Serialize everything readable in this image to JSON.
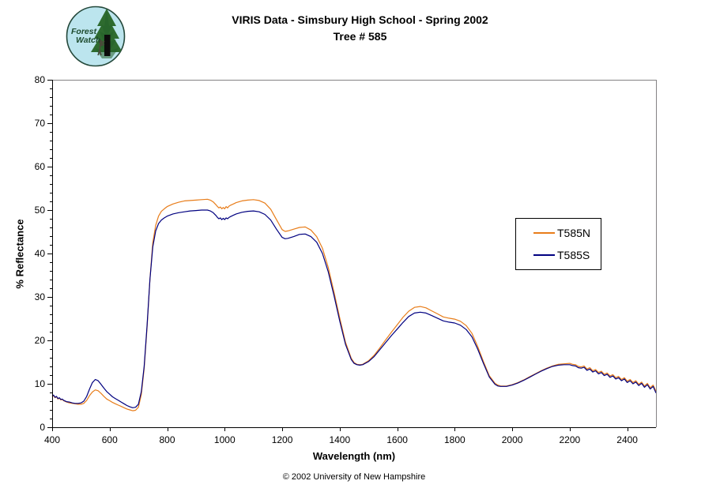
{
  "logo": {
    "line1": "Forest",
    "line2": "Watch"
  },
  "title": {
    "line1": "VIRIS Data - Simsbury High School - Spring 2002",
    "line2": "Tree # 585"
  },
  "footer": "© 2002 University of New Hampshire",
  "chart_data": {
    "type": "line",
    "title": "VIRIS Data - Simsbury High School - Spring 2002 / Tree # 585",
    "xlabel": "Wavelength (nm)",
    "ylabel": "% Reflectance",
    "xlim": [
      400,
      2500
    ],
    "ylim": [
      0,
      80
    ],
    "x_ticks": [
      400,
      600,
      800,
      1000,
      1200,
      1400,
      1600,
      1800,
      2000,
      2200,
      2400
    ],
    "y_ticks": [
      0,
      10,
      20,
      30,
      40,
      50,
      60,
      70,
      80
    ],
    "y_minor_step": 2,
    "grid": false,
    "legend_position": "right-center",
    "axis_color": "#000000",
    "border_color": "#848284",
    "series": [
      {
        "name": "T585N",
        "color": "#e87d1a",
        "points": [
          [
            400,
            7.0
          ],
          [
            405,
            7.3
          ],
          [
            410,
            6.8
          ],
          [
            415,
            7.0
          ],
          [
            420,
            6.5
          ],
          [
            425,
            6.7
          ],
          [
            430,
            6.3
          ],
          [
            435,
            6.4
          ],
          [
            440,
            6.1
          ],
          [
            450,
            5.8
          ],
          [
            460,
            5.6
          ],
          [
            470,
            5.5
          ],
          [
            480,
            5.4
          ],
          [
            490,
            5.3
          ],
          [
            500,
            5.3
          ],
          [
            510,
            5.5
          ],
          [
            520,
            6.2
          ],
          [
            530,
            7.3
          ],
          [
            540,
            8.1
          ],
          [
            550,
            8.6
          ],
          [
            560,
            8.4
          ],
          [
            570,
            7.8
          ],
          [
            580,
            7.1
          ],
          [
            590,
            6.5
          ],
          [
            600,
            6.1
          ],
          [
            610,
            5.7
          ],
          [
            620,
            5.4
          ],
          [
            630,
            5.1
          ],
          [
            640,
            4.8
          ],
          [
            650,
            4.5
          ],
          [
            660,
            4.2
          ],
          [
            670,
            4.0
          ],
          [
            680,
            3.8
          ],
          [
            690,
            3.9
          ],
          [
            700,
            4.6
          ],
          [
            710,
            7.5
          ],
          [
            720,
            13.5
          ],
          [
            730,
            23.0
          ],
          [
            740,
            34.0
          ],
          [
            750,
            42.5
          ],
          [
            760,
            46.5
          ],
          [
            770,
            48.6
          ],
          [
            780,
            49.7
          ],
          [
            790,
            50.3
          ],
          [
            800,
            50.8
          ],
          [
            820,
            51.4
          ],
          [
            840,
            51.8
          ],
          [
            860,
            52.1
          ],
          [
            880,
            52.2
          ],
          [
            900,
            52.3
          ],
          [
            920,
            52.4
          ],
          [
            940,
            52.5
          ],
          [
            950,
            52.3
          ],
          [
            960,
            51.9
          ],
          [
            970,
            51.2
          ],
          [
            975,
            50.8
          ],
          [
            980,
            50.5
          ],
          [
            985,
            50.7
          ],
          [
            990,
            50.3
          ],
          [
            995,
            50.6
          ],
          [
            1000,
            50.3
          ],
          [
            1005,
            50.8
          ],
          [
            1010,
            50.5
          ],
          [
            1015,
            50.9
          ],
          [
            1020,
            51.1
          ],
          [
            1030,
            51.4
          ],
          [
            1040,
            51.7
          ],
          [
            1060,
            52.1
          ],
          [
            1080,
            52.3
          ],
          [
            1100,
            52.4
          ],
          [
            1120,
            52.2
          ],
          [
            1140,
            51.6
          ],
          [
            1160,
            50.2
          ],
          [
            1180,
            47.8
          ],
          [
            1200,
            45.5
          ],
          [
            1210,
            45.1
          ],
          [
            1220,
            45.2
          ],
          [
            1240,
            45.6
          ],
          [
            1260,
            46.0
          ],
          [
            1280,
            46.1
          ],
          [
            1300,
            45.4
          ],
          [
            1320,
            43.9
          ],
          [
            1340,
            41.2
          ],
          [
            1360,
            36.8
          ],
          [
            1380,
            31.2
          ],
          [
            1400,
            25.2
          ],
          [
            1420,
            19.6
          ],
          [
            1440,
            15.9
          ],
          [
            1450,
            14.9
          ],
          [
            1460,
            14.5
          ],
          [
            1470,
            14.4
          ],
          [
            1480,
            14.5
          ],
          [
            1500,
            15.3
          ],
          [
            1520,
            16.6
          ],
          [
            1540,
            18.3
          ],
          [
            1560,
            20.1
          ],
          [
            1580,
            21.9
          ],
          [
            1600,
            23.6
          ],
          [
            1620,
            25.3
          ],
          [
            1640,
            26.7
          ],
          [
            1660,
            27.6
          ],
          [
            1680,
            27.8
          ],
          [
            1700,
            27.5
          ],
          [
            1720,
            26.8
          ],
          [
            1740,
            26.1
          ],
          [
            1760,
            25.4
          ],
          [
            1780,
            25.1
          ],
          [
            1800,
            24.9
          ],
          [
            1820,
            24.4
          ],
          [
            1840,
            23.4
          ],
          [
            1860,
            21.6
          ],
          [
            1880,
            18.6
          ],
          [
            1900,
            15.1
          ],
          [
            1920,
            11.9
          ],
          [
            1940,
            10.1
          ],
          [
            1950,
            9.7
          ],
          [
            1960,
            9.5
          ],
          [
            1980,
            9.5
          ],
          [
            2000,
            9.8
          ],
          [
            2020,
            10.3
          ],
          [
            2040,
            10.9
          ],
          [
            2060,
            11.6
          ],
          [
            2080,
            12.3
          ],
          [
            2100,
            13.0
          ],
          [
            2120,
            13.6
          ],
          [
            2140,
            14.1
          ],
          [
            2160,
            14.5
          ],
          [
            2180,
            14.6
          ],
          [
            2200,
            14.7
          ],
          [
            2210,
            14.5
          ],
          [
            2220,
            14.4
          ],
          [
            2230,
            14.0
          ],
          [
            2240,
            13.9
          ],
          [
            2250,
            14.1
          ],
          [
            2260,
            13.4
          ],
          [
            2270,
            13.7
          ],
          [
            2280,
            13.0
          ],
          [
            2290,
            13.3
          ],
          [
            2300,
            12.6
          ],
          [
            2310,
            12.9
          ],
          [
            2320,
            12.2
          ],
          [
            2330,
            12.5
          ],
          [
            2340,
            11.8
          ],
          [
            2350,
            12.1
          ],
          [
            2360,
            11.4
          ],
          [
            2370,
            11.7
          ],
          [
            2380,
            11.0
          ],
          [
            2390,
            11.4
          ],
          [
            2400,
            10.6
          ],
          [
            2410,
            11.0
          ],
          [
            2420,
            10.3
          ],
          [
            2430,
            10.7
          ],
          [
            2440,
            9.9
          ],
          [
            2450,
            10.4
          ],
          [
            2460,
            9.5
          ],
          [
            2470,
            10.1
          ],
          [
            2480,
            9.1
          ],
          [
            2490,
            9.7
          ],
          [
            2500,
            8.3
          ]
        ]
      },
      {
        "name": "T585S",
        "color": "#000080",
        "points": [
          [
            400,
            7.2
          ],
          [
            405,
            7.4
          ],
          [
            410,
            6.9
          ],
          [
            415,
            7.1
          ],
          [
            420,
            6.6
          ],
          [
            425,
            6.8
          ],
          [
            430,
            6.4
          ],
          [
            435,
            6.5
          ],
          [
            440,
            6.2
          ],
          [
            450,
            5.9
          ],
          [
            460,
            5.8
          ],
          [
            470,
            5.6
          ],
          [
            480,
            5.5
          ],
          [
            490,
            5.5
          ],
          [
            500,
            5.6
          ],
          [
            510,
            6.0
          ],
          [
            520,
            7.1
          ],
          [
            530,
            8.8
          ],
          [
            540,
            10.3
          ],
          [
            550,
            11.0
          ],
          [
            560,
            10.7
          ],
          [
            570,
            9.9
          ],
          [
            580,
            9.0
          ],
          [
            590,
            8.2
          ],
          [
            600,
            7.6
          ],
          [
            610,
            7.0
          ],
          [
            620,
            6.6
          ],
          [
            630,
            6.2
          ],
          [
            640,
            5.8
          ],
          [
            650,
            5.4
          ],
          [
            660,
            5.0
          ],
          [
            670,
            4.7
          ],
          [
            680,
            4.5
          ],
          [
            690,
            4.6
          ],
          [
            700,
            5.3
          ],
          [
            710,
            8.2
          ],
          [
            720,
            14.0
          ],
          [
            730,
            23.5
          ],
          [
            740,
            34.0
          ],
          [
            750,
            41.5
          ],
          [
            760,
            45.2
          ],
          [
            770,
            46.9
          ],
          [
            780,
            47.7
          ],
          [
            790,
            48.2
          ],
          [
            800,
            48.6
          ],
          [
            820,
            49.1
          ],
          [
            840,
            49.4
          ],
          [
            860,
            49.6
          ],
          [
            880,
            49.8
          ],
          [
            900,
            49.9
          ],
          [
            920,
            50.0
          ],
          [
            940,
            50.0
          ],
          [
            950,
            49.8
          ],
          [
            960,
            49.4
          ],
          [
            970,
            48.7
          ],
          [
            975,
            48.3
          ],
          [
            980,
            48.0
          ],
          [
            985,
            48.2
          ],
          [
            990,
            47.8
          ],
          [
            995,
            48.1
          ],
          [
            1000,
            47.8
          ],
          [
            1005,
            48.2
          ],
          [
            1010,
            48.0
          ],
          [
            1015,
            48.3
          ],
          [
            1020,
            48.5
          ],
          [
            1030,
            48.8
          ],
          [
            1040,
            49.1
          ],
          [
            1060,
            49.5
          ],
          [
            1080,
            49.7
          ],
          [
            1100,
            49.8
          ],
          [
            1120,
            49.6
          ],
          [
            1140,
            49.0
          ],
          [
            1160,
            47.7
          ],
          [
            1180,
            45.6
          ],
          [
            1200,
            43.7
          ],
          [
            1210,
            43.4
          ],
          [
            1220,
            43.5
          ],
          [
            1240,
            43.9
          ],
          [
            1260,
            44.4
          ],
          [
            1280,
            44.5
          ],
          [
            1300,
            43.9
          ],
          [
            1320,
            42.6
          ],
          [
            1340,
            40.0
          ],
          [
            1360,
            35.8
          ],
          [
            1380,
            30.4
          ],
          [
            1400,
            24.5
          ],
          [
            1420,
            19.1
          ],
          [
            1440,
            15.6
          ],
          [
            1450,
            14.7
          ],
          [
            1460,
            14.4
          ],
          [
            1470,
            14.3
          ],
          [
            1480,
            14.4
          ],
          [
            1500,
            15.1
          ],
          [
            1520,
            16.3
          ],
          [
            1540,
            17.9
          ],
          [
            1560,
            19.5
          ],
          [
            1580,
            21.1
          ],
          [
            1600,
            22.6
          ],
          [
            1620,
            24.1
          ],
          [
            1640,
            25.5
          ],
          [
            1660,
            26.3
          ],
          [
            1680,
            26.5
          ],
          [
            1700,
            26.3
          ],
          [
            1720,
            25.7
          ],
          [
            1740,
            25.1
          ],
          [
            1760,
            24.5
          ],
          [
            1780,
            24.2
          ],
          [
            1800,
            24.0
          ],
          [
            1820,
            23.5
          ],
          [
            1840,
            22.5
          ],
          [
            1860,
            20.8
          ],
          [
            1880,
            18.0
          ],
          [
            1900,
            14.7
          ],
          [
            1920,
            11.6
          ],
          [
            1940,
            9.9
          ],
          [
            1950,
            9.5
          ],
          [
            1960,
            9.4
          ],
          [
            1980,
            9.4
          ],
          [
            2000,
            9.7
          ],
          [
            2020,
            10.2
          ],
          [
            2040,
            10.8
          ],
          [
            2060,
            11.5
          ],
          [
            2080,
            12.2
          ],
          [
            2100,
            12.9
          ],
          [
            2120,
            13.5
          ],
          [
            2140,
            14.0
          ],
          [
            2160,
            14.3
          ],
          [
            2180,
            14.4
          ],
          [
            2200,
            14.4
          ],
          [
            2210,
            14.2
          ],
          [
            2220,
            14.1
          ],
          [
            2230,
            13.7
          ],
          [
            2240,
            13.6
          ],
          [
            2250,
            13.8
          ],
          [
            2260,
            13.1
          ],
          [
            2270,
            13.4
          ],
          [
            2280,
            12.7
          ],
          [
            2290,
            13.0
          ],
          [
            2300,
            12.3
          ],
          [
            2310,
            12.6
          ],
          [
            2320,
            11.9
          ],
          [
            2330,
            12.2
          ],
          [
            2340,
            11.5
          ],
          [
            2350,
            11.8
          ],
          [
            2360,
            11.1
          ],
          [
            2370,
            11.4
          ],
          [
            2380,
            10.7
          ],
          [
            2390,
            11.1
          ],
          [
            2400,
            10.3
          ],
          [
            2410,
            10.7
          ],
          [
            2420,
            10.0
          ],
          [
            2430,
            10.4
          ],
          [
            2440,
            9.6
          ],
          [
            2450,
            10.1
          ],
          [
            2460,
            9.2
          ],
          [
            2470,
            9.8
          ],
          [
            2480,
            8.8
          ],
          [
            2490,
            9.4
          ],
          [
            2500,
            7.9
          ]
        ]
      }
    ]
  }
}
